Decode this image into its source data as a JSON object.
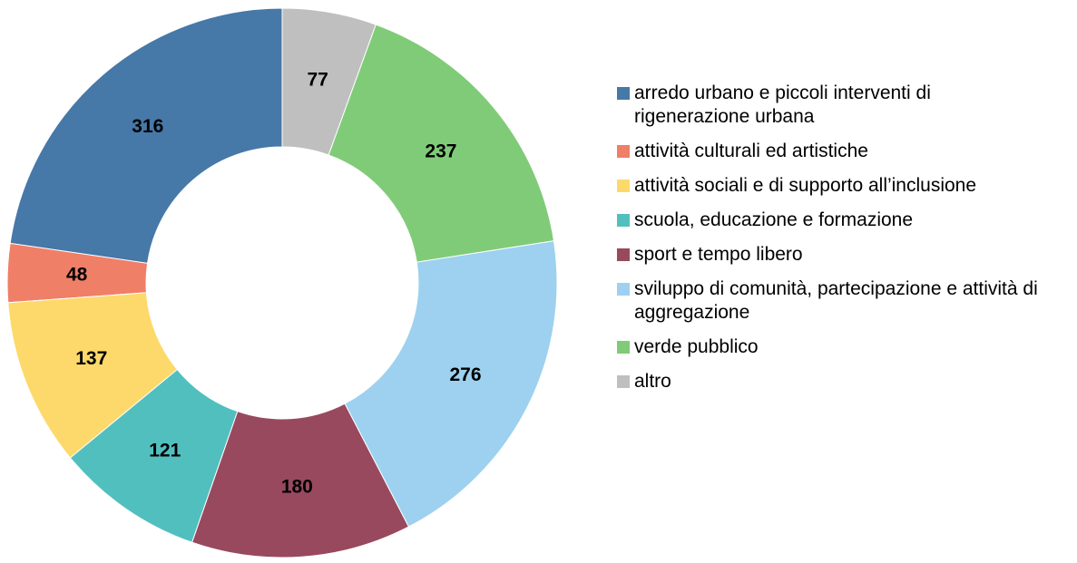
{
  "chart_data": {
    "type": "donut",
    "categories": [
      "arredo urbano e piccoli interventi di rigenerazione urbana",
      "attività culturali ed artistiche",
      "attività sociali e di supporto all’inclusione",
      "scuola, educazione e formazione",
      "sport e tempo libero",
      "sviluppo di comunità, partecipazione e attività di aggregazione",
      "verde pubblico",
      "altro"
    ],
    "values": [
      316,
      48,
      137,
      121,
      180,
      276,
      237,
      77
    ],
    "colors": [
      "#4678a8",
      "#f07f67",
      "#fcd96a",
      "#52bfbf",
      "#98495e",
      "#9dd1ef",
      "#80cb78",
      "#bfbfbf"
    ],
    "legend": "right"
  }
}
